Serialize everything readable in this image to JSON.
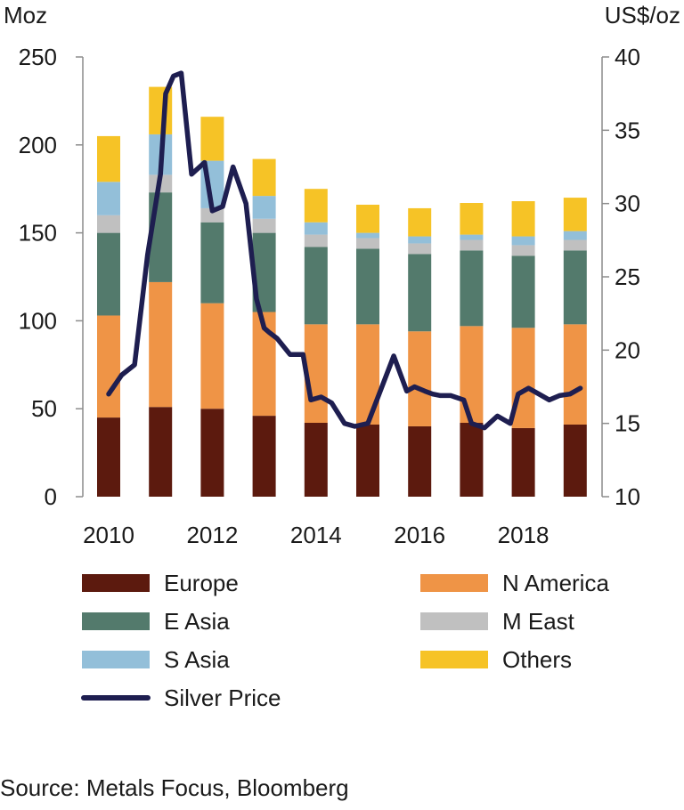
{
  "chart_data": {
    "type": "bar",
    "stacked": true,
    "left_axis_label": "Moz",
    "right_axis_label": "US$/oz",
    "ylim": [
      0,
      250
    ],
    "y_ticks": [
      0,
      50,
      100,
      150,
      200,
      250
    ],
    "y2lim": [
      10,
      40
    ],
    "y2_ticks": [
      10,
      15,
      20,
      25,
      30,
      35,
      40
    ],
    "x_tick_labels": [
      "2010",
      "2012",
      "2014",
      "2016",
      "2018"
    ],
    "categories": [
      "2010",
      "2011",
      "2012",
      "2013",
      "2014",
      "2015",
      "2016",
      "2017",
      "2018",
      "2019"
    ],
    "series": [
      {
        "name": "Europe",
        "color": "#5c1a0e",
        "values": [
          45,
          51,
          50,
          46,
          42,
          41,
          40,
          42,
          39,
          41
        ]
      },
      {
        "name": "N America",
        "color": "#ef9446",
        "values": [
          58,
          71,
          60,
          59,
          56,
          57,
          54,
          55,
          57,
          57
        ]
      },
      {
        "name": "E Asia",
        "color": "#537a6c",
        "values": [
          47,
          51,
          46,
          45,
          44,
          43,
          44,
          43,
          41,
          42
        ]
      },
      {
        "name": "M East",
        "color": "#c0c0c0",
        "values": [
          10,
          10,
          8,
          8,
          7,
          6,
          6,
          6,
          6,
          6
        ]
      },
      {
        "name": "S Asia",
        "color": "#93bfd9",
        "values": [
          19,
          23,
          27,
          13,
          7,
          3,
          4,
          3,
          5,
          5
        ]
      },
      {
        "name": "Others",
        "color": "#f6c326",
        "values": [
          26,
          27,
          25,
          21,
          19,
          16,
          16,
          18,
          20,
          19
        ]
      }
    ],
    "line_series": {
      "name": "Silver Price",
      "color": "#1e1e50",
      "axis": "right",
      "x": [
        2010.0,
        2010.25,
        2010.5,
        2010.75,
        2011.0,
        2011.1,
        2011.25,
        2011.4,
        2011.6,
        2011.85,
        2012.0,
        2012.2,
        2012.4,
        2012.65,
        2012.85,
        2013.0,
        2013.1,
        2013.25,
        2013.5,
        2013.75,
        2013.9,
        2014.1,
        2014.3,
        2014.55,
        2014.75,
        2015.0,
        2015.25,
        2015.5,
        2015.75,
        2015.9,
        2016.1,
        2016.25,
        2016.4,
        2016.6,
        2016.85,
        2017.0,
        2017.25,
        2017.5,
        2017.75,
        2017.9,
        2018.1,
        2018.3,
        2018.5,
        2018.7,
        2018.9,
        2019.1
      ],
      "y": [
        17.0,
        18.3,
        19.0,
        26.5,
        32.0,
        37.5,
        38.7,
        38.9,
        32.0,
        32.8,
        29.5,
        29.8,
        32.5,
        30.0,
        23.5,
        21.5,
        21.2,
        20.8,
        19.7,
        19.7,
        16.6,
        16.8,
        16.4,
        15.0,
        14.8,
        15.0,
        17.3,
        19.6,
        17.2,
        17.5,
        17.2,
        17.0,
        16.9,
        16.9,
        16.6,
        15.0,
        14.7,
        15.5,
        15.0,
        17.0,
        17.4,
        17.0,
        16.6,
        16.9,
        17.0,
        17.4
      ]
    },
    "grid": false,
    "legend_position": "bottom",
    "legend": [
      {
        "name": "Europe",
        "type": "box",
        "color": "#5c1a0e"
      },
      {
        "name": "N America",
        "type": "box",
        "color": "#ef9446"
      },
      {
        "name": "E Asia",
        "type": "box",
        "color": "#537a6c"
      },
      {
        "name": "M East",
        "type": "box",
        "color": "#c0c0c0"
      },
      {
        "name": "S Asia",
        "type": "box",
        "color": "#93bfd9"
      },
      {
        "name": "Others",
        "type": "box",
        "color": "#f6c326"
      },
      {
        "name": "Silver Price",
        "type": "line",
        "color": "#1e1e50"
      }
    ]
  },
  "source": "Source: Metals Focus, Bloomberg"
}
